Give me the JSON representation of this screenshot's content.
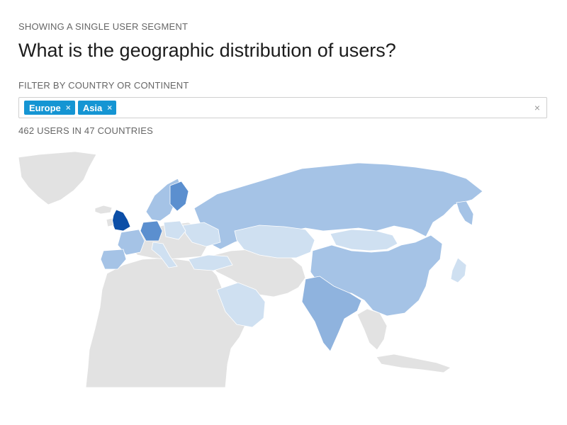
{
  "header": {
    "segment_label": "SHOWING A SINGLE USER SEGMENT",
    "title": "What is the geographic distribution of users?"
  },
  "filter": {
    "label": "FILTER BY COUNTRY OR CONTINENT",
    "tags": [
      {
        "label": "Europe",
        "remove_glyph": "×"
      },
      {
        "label": "Asia",
        "remove_glyph": "×"
      }
    ],
    "clear_glyph": "×"
  },
  "summary": "462 USERS IN 47 COUNTRIES",
  "map": {
    "color_scale": {
      "no_users": "#e2e2e2",
      "level_1": "#cfe0f1",
      "level_2": "#a5c3e6",
      "level_3": "#8fb3de",
      "level_4": "#5b8fcf",
      "level_5": "#0b4ea7"
    },
    "regions": [
      {
        "name": "United Kingdom",
        "level": 5
      },
      {
        "name": "Finland",
        "level": 4
      },
      {
        "name": "Germany",
        "level": 4
      },
      {
        "name": "India",
        "level": 3
      },
      {
        "name": "Russia",
        "level": 2
      },
      {
        "name": "China",
        "level": 2
      },
      {
        "name": "France",
        "level": 2
      },
      {
        "name": "Spain",
        "level": 2
      },
      {
        "name": "Norway",
        "level": 2
      },
      {
        "name": "Sweden",
        "level": 2
      },
      {
        "name": "Ukraine",
        "level": 2
      },
      {
        "name": "Japan",
        "level": 1
      },
      {
        "name": "Kazakhstan",
        "level": 1
      },
      {
        "name": "Mongolia",
        "level": 1
      },
      {
        "name": "Saudi Arabia",
        "level": 1
      },
      {
        "name": "Turkey",
        "level": 1
      },
      {
        "name": "Italy",
        "level": 1
      },
      {
        "name": "Poland",
        "level": 1
      }
    ]
  }
}
